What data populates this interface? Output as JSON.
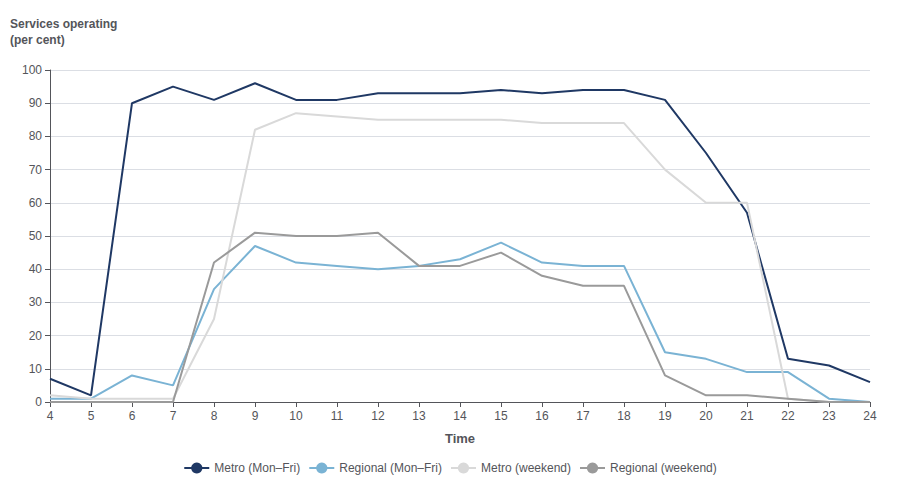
{
  "chart_data": {
    "type": "line",
    "ylabel": "Services operating\n(per cent)",
    "xlabel": "Time",
    "x": [
      4,
      5,
      6,
      7,
      8,
      9,
      10,
      11,
      12,
      13,
      14,
      15,
      16,
      17,
      18,
      19,
      20,
      21,
      22,
      23,
      24
    ],
    "series": [
      {
        "name": "Metro (Mon–Fri)",
        "color": "#1f3864",
        "values": [
          7,
          2,
          90,
          95,
          91,
          96,
          91,
          91,
          93,
          93,
          93,
          94,
          93,
          94,
          94,
          91,
          75,
          57,
          13,
          11,
          6
        ]
      },
      {
        "name": "Regional (Mon–Fri)",
        "color": "#7ab3d4",
        "values": [
          1,
          1,
          8,
          5,
          34,
          47,
          42,
          41,
          40,
          41,
          43,
          48,
          42,
          41,
          41,
          15,
          13,
          9,
          9,
          1,
          0
        ]
      },
      {
        "name": "Metro (weekend)",
        "color": "#d9d9d9",
        "values": [
          2,
          1,
          1,
          1,
          25,
          82,
          87,
          86,
          85,
          85,
          85,
          85,
          84,
          84,
          84,
          70,
          60,
          60,
          1,
          0,
          0
        ]
      },
      {
        "name": "Regional (weekend)",
        "color": "#9a9a9a",
        "values": [
          0,
          0,
          0,
          0,
          42,
          51,
          50,
          50,
          51,
          41,
          41,
          45,
          38,
          35,
          35,
          8,
          2,
          2,
          1,
          0,
          0
        ]
      }
    ],
    "xlim": [
      4,
      24
    ],
    "xticks": [
      4,
      5,
      6,
      7,
      8,
      9,
      10,
      11,
      12,
      13,
      14,
      15,
      16,
      17,
      18,
      19,
      20,
      21,
      22,
      23,
      24
    ],
    "ylim": [
      0,
      100
    ],
    "yticks": [
      0,
      10,
      20,
      30,
      40,
      50,
      60,
      70,
      80,
      90,
      100
    ],
    "grid": true,
    "legend": "bottom"
  }
}
